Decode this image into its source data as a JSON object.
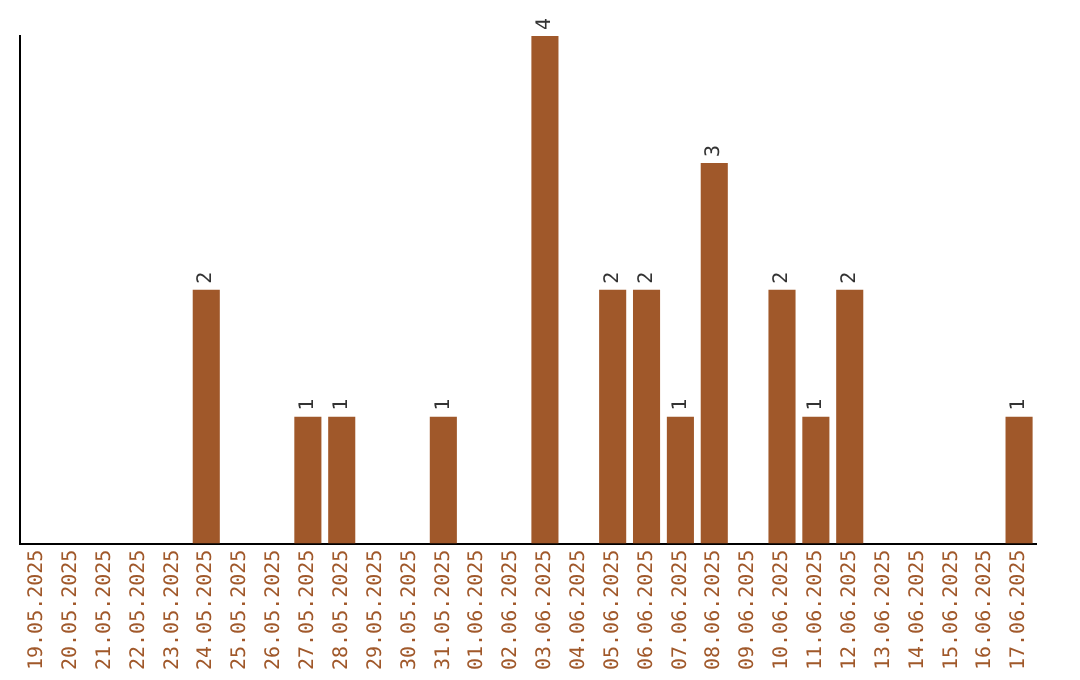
{
  "chart_data": {
    "type": "bar",
    "categories": [
      "19.05.2025",
      "20.05.2025",
      "21.05.2025",
      "22.05.2025",
      "23.05.2025",
      "24.05.2025",
      "25.05.2025",
      "26.05.2025",
      "27.05.2025",
      "28.05.2025",
      "29.05.2025",
      "30.05.2025",
      "31.05.2025",
      "01.06.2025",
      "02.06.2025",
      "03.06.2025",
      "04.06.2025",
      "05.06.2025",
      "06.06.2025",
      "07.06.2025",
      "08.06.2025",
      "09.06.2025",
      "10.06.2025",
      "11.06.2025",
      "12.06.2025",
      "13.06.2025",
      "14.06.2025",
      "15.06.2025",
      "16.06.2025",
      "17.06.2025"
    ],
    "values": [
      0,
      0,
      0,
      0,
      0,
      2,
      0,
      0,
      1,
      1,
      0,
      0,
      1,
      0,
      0,
      4,
      0,
      2,
      2,
      1,
      3,
      0,
      2,
      1,
      2,
      0,
      0,
      0,
      0,
      1
    ],
    "value_labels": [
      null,
      null,
      null,
      null,
      null,
      "2",
      null,
      null,
      "1",
      "1",
      null,
      null,
      "1",
      null,
      null,
      "4",
      null,
      "2",
      "2",
      "1",
      "3",
      null,
      "2",
      "1",
      "2",
      null,
      null,
      null,
      null,
      "1"
    ],
    "color": "#a0582a",
    "ylim": [
      0,
      4
    ],
    "tick_labels": "x",
    "grid": false,
    "legend": false
  }
}
